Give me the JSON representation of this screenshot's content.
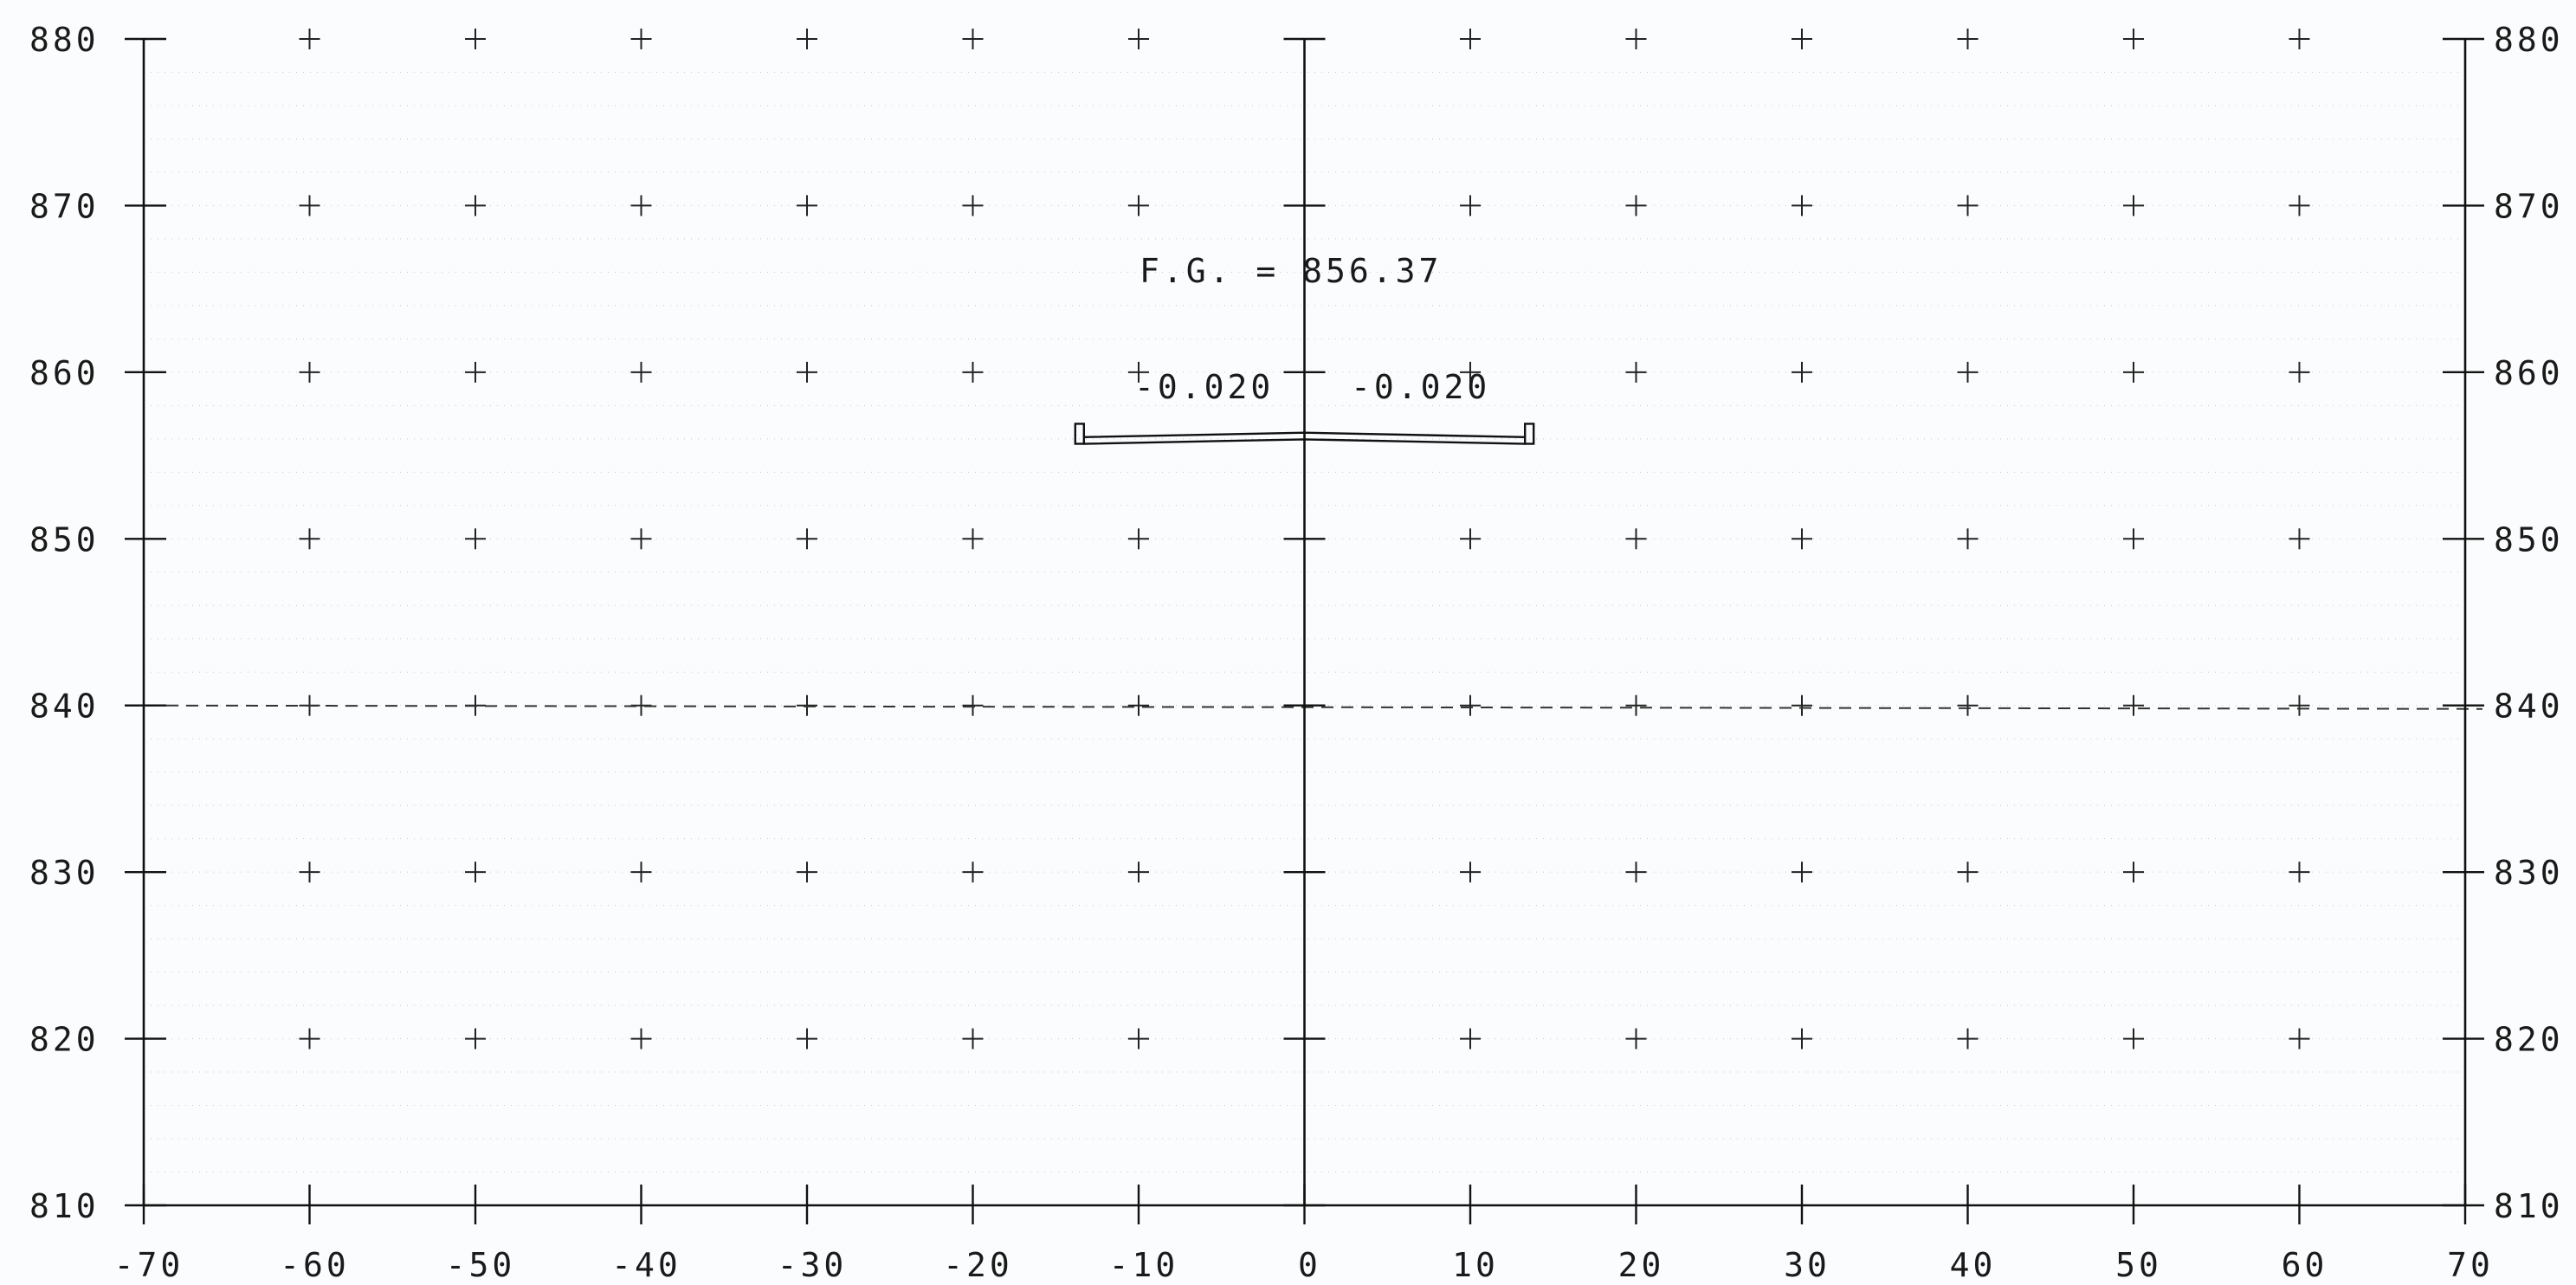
{
  "chart_data": {
    "type": "cross-section",
    "xlim": [
      -70,
      70
    ],
    "ylim": [
      810,
      880
    ],
    "x_ticks": [
      -70,
      -60,
      -50,
      -40,
      -30,
      -20,
      -10,
      0,
      10,
      20,
      30,
      40,
      50,
      60,
      70
    ],
    "x_tick_labels": [
      "-70",
      "-60",
      "-50",
      "-40",
      "-30",
      "-20",
      "-10",
      "0",
      "10",
      "20",
      "30",
      "40",
      "50",
      "60",
      "70"
    ],
    "y_ticks": [
      810,
      820,
      830,
      840,
      850,
      860,
      870,
      880
    ],
    "y_tick_labels": [
      "810",
      "820",
      "830",
      "840",
      "850",
      "860",
      "870",
      "880"
    ],
    "grid": "crosses at 10-unit intersections, dotted minor grid",
    "reference_line": {
      "elevation": 840,
      "style": "dashed"
    },
    "finish_grade": {
      "label": "F.G. = 856.37",
      "elevation": 856.37,
      "offset": 0
    },
    "roadway": {
      "left_edge": -13.3,
      "right_edge": 13.3,
      "left_slope": {
        "label": "-0.020",
        "value": -0.02
      },
      "right_slope": {
        "label": "-0.020",
        "value": -0.02
      },
      "curb_height": 1.2
    }
  }
}
